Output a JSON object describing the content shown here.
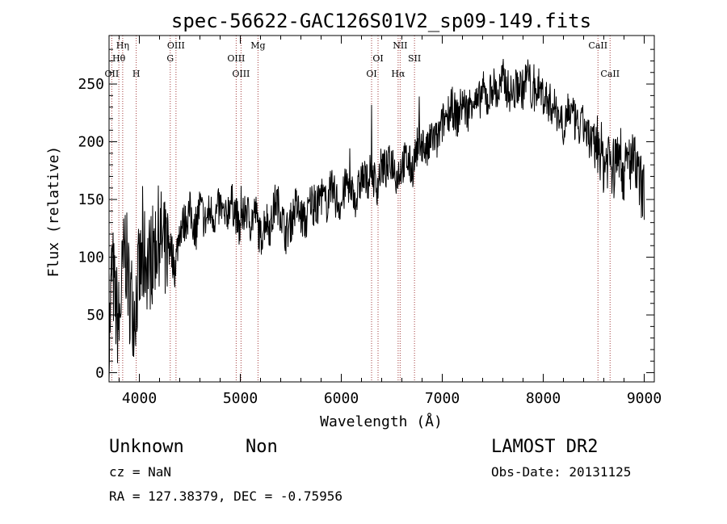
{
  "chart_data": {
    "type": "line",
    "title": "spec-56622-GAC126S01V2_sp09-149.fits",
    "xlabel": "Wavelength (Å)",
    "ylabel": "Flux (relative)",
    "xlim": [
      3700,
      9100
    ],
    "ylim": [
      -8,
      292
    ],
    "x_ticks": [
      4000,
      5000,
      6000,
      7000,
      8000,
      9000
    ],
    "y_ticks": [
      0,
      50,
      100,
      150,
      200,
      250
    ],
    "grid": false,
    "series": [
      {
        "x": [
          3700,
          3730,
          3760,
          3800,
          3830,
          3860,
          3900,
          3950,
          4000,
          4050,
          4100,
          4150,
          4200,
          4250,
          4300,
          4350,
          4400,
          4450,
          4500,
          4550,
          4600,
          4650,
          4700,
          4750,
          4800,
          4850,
          4900,
          4950,
          5000,
          5050,
          5100,
          5150,
          5200,
          5250,
          5300,
          5350,
          5400,
          5450,
          5500,
          5550,
          5600,
          5650,
          5700,
          5750,
          5800,
          5850,
          5900,
          5950,
          6000,
          6050,
          6100,
          6150,
          6200,
          6250,
          6300,
          6350,
          6400,
          6450,
          6500,
          6550,
          6600,
          6650,
          6700,
          6750,
          6800,
          6850,
          6900,
          6950,
          7000,
          7050,
          7100,
          7150,
          7200,
          7250,
          7300,
          7350,
          7400,
          7450,
          7500,
          7550,
          7600,
          7650,
          7700,
          7750,
          7800,
          7850,
          7900,
          7950,
          8000,
          8050,
          8100,
          8150,
          8200,
          8250,
          8300,
          8350,
          8400,
          8450,
          8500,
          8550,
          8600,
          8650,
          8700,
          8750,
          8800,
          8850,
          8900,
          8950,
          9000
        ],
        "y": [
          20,
          95,
          60,
          40,
          80,
          110,
          70,
          55,
          85,
          100,
          95,
          110,
          120,
          105,
          115,
          90,
          125,
          130,
          140,
          125,
          145,
          130,
          140,
          135,
          145,
          130,
          150,
          140,
          120,
          145,
          130,
          140,
          115,
          135,
          125,
          150,
          140,
          120,
          130,
          145,
          135,
          130,
          150,
          140,
          155,
          145,
          160,
          150,
          145,
          165,
          160,
          150,
          170,
          165,
          175,
          160,
          180,
          175,
          185,
          170,
          180,
          185,
          175,
          195,
          200,
          190,
          205,
          200,
          215,
          225,
          230,
          220,
          235,
          225,
          240,
          230,
          245,
          235,
          250,
          240,
          255,
          245,
          240,
          250,
          245,
          260,
          235,
          250,
          240,
          235,
          230,
          225,
          215,
          230,
          220,
          210,
          215,
          205,
          195,
          200,
          180,
          190,
          175,
          195,
          170,
          185,
          180,
          165,
          155
        ]
      }
    ],
    "emission_lines": [
      {
        "label": "OII",
        "x": 3727
      },
      {
        "label": "Hθ",
        "x": 3797
      },
      {
        "label": "Hη",
        "x": 3835
      },
      {
        "label": "H",
        "x": 3969
      },
      {
        "label": "G",
        "x": 4306
      },
      {
        "label": "OIII",
        "x": 4363
      },
      {
        "label": "OIII",
        "x": 4959
      },
      {
        "label": "OIII",
        "x": 5007
      },
      {
        "label": "Mg",
        "x": 5175
      },
      {
        "label": "OI",
        "x": 6300
      },
      {
        "label": "OI",
        "x": 6364
      },
      {
        "label": "Hα",
        "x": 6563
      },
      {
        "label": "NII",
        "x": 6583
      },
      {
        "label": "SII",
        "x": 6725
      },
      {
        "label": "CaII",
        "x": 8542
      },
      {
        "label": "CaII",
        "x": 8662
      }
    ]
  },
  "footer": {
    "object_class": "Unknown",
    "subclass": "Non",
    "survey": "LAMOST DR2",
    "cz": "cz = NaN",
    "obs_date": "Obs-Date: 20131125",
    "coords": "RA = 127.38379, DEC =  -0.75956"
  }
}
